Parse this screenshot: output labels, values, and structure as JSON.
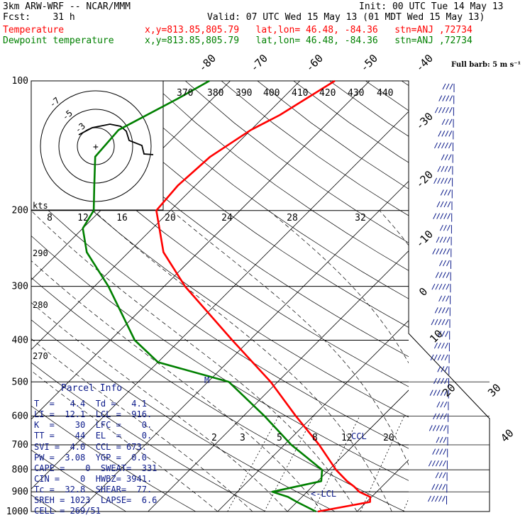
{
  "header": {
    "line1_left": "3km ARW-WRF -- NCAR/MMM",
    "line1_right": "Init: 00 UTC Tue 14 May 13",
    "line2_left": "Fcst:    31 h",
    "line2_right": "Valid: 07 UTC Wed 15 May 13 (01 MDT Wed 15 May 13)",
    "temp_label": "Temperature",
    "dew_label": "Dewpoint temperature",
    "temp_loc": "x,y=813.85,805.79   lat,lon= 46.48, -84.36   stn=ANJ ,72734",
    "dew_loc": "x,y=813.85,805.79   lat,lon= 46.48, -84.36   stn=ANJ ,72734"
  },
  "colors": {
    "temperature": "#ff0000",
    "dewpoint": "#008000",
    "isotherm": "#000000",
    "panel_text": "#0b1a8a",
    "wind_barbs": "#0b1a8a"
  },
  "chart_data": {
    "type": "skew-t",
    "pressure_ticks": [
      "100",
      "200",
      "300",
      "400",
      "500",
      "600",
      "700",
      "800",
      "900",
      "1000"
    ],
    "isotherm_labels_top": [
      "-80",
      "-70",
      "-60",
      "-50",
      "-40"
    ],
    "isotherm_labels_right": [
      "-30",
      "-20",
      "-10",
      "0",
      "10",
      "20",
      "30",
      "40"
    ],
    "theta_labels": [
      "370",
      "380",
      "390",
      "400",
      "410",
      "420",
      "430",
      "440"
    ],
    "theta_side_labels": [
      "290",
      "280",
      "270"
    ],
    "mixing_ratio_labels": [
      "2",
      "3",
      "5",
      "8",
      "12",
      "20"
    ],
    "hodograph_speed_labels": [
      "8",
      "12",
      "16",
      "20",
      "24",
      "28",
      "32"
    ],
    "hodograph_units": "kts",
    "hodograph_ring_labels": [
      "-7",
      "-5",
      "-3"
    ],
    "barb_key": "Full barb: 5 m s⁻¹",
    "markers": {
      "ccl": "CCL",
      "lcl": "<-LCL",
      "m": "M"
    },
    "temperature": {
      "p": [
        1000,
        950,
        925,
        900,
        875,
        850,
        800,
        700,
        600,
        500,
        400,
        300,
        250,
        200,
        175,
        150,
        130,
        120,
        100
      ],
      "t": [
        4.4,
        10.5,
        9.8,
        7.5,
        6.0,
        4.2,
        1.0,
        -5.0,
        -12.5,
        -21.0,
        -32.5,
        -47.0,
        -55.0,
        -62.0,
        -62.5,
        -62.0,
        -60.0,
        -58.0,
        -55.0
      ]
    },
    "dewpoint": {
      "p": [
        1000,
        950,
        925,
        900,
        850,
        800,
        700,
        600,
        500,
        450,
        400,
        300,
        250,
        220,
        200,
        175,
        150,
        130,
        110,
        100
      ],
      "td": [
        4.1,
        0.0,
        -2.0,
        -5.0,
        0.5,
        -1.0,
        -9.0,
        -17.0,
        -27.0,
        -40.0,
        -46.5,
        -58.0,
        -66.0,
        -70.0,
        -71.0,
        -74.5,
        -78.5,
        -79.0,
        -75.0,
        -73.0
      ]
    },
    "parcel_info": {
      "title": "Parcel Info",
      "rows": [
        "T  =   4.4  Td =   4.1",
        "LI =  12.1  LCL =  916.",
        "K  =    30  LFC =    0.",
        "TT =    44  EL  =    0.",
        "SVI =  4.0  CCL = 673.",
        "PW =  3.08  YGP =  0.0",
        "CAPE =    0  SWEAT=  331",
        "CIN =    0  HWBZ= 3941.",
        "Tc =  32.8  SHEAR=  77.",
        "SREH = 1023  LAPSE=  6.6",
        "CELL = 269/51"
      ]
    }
  }
}
